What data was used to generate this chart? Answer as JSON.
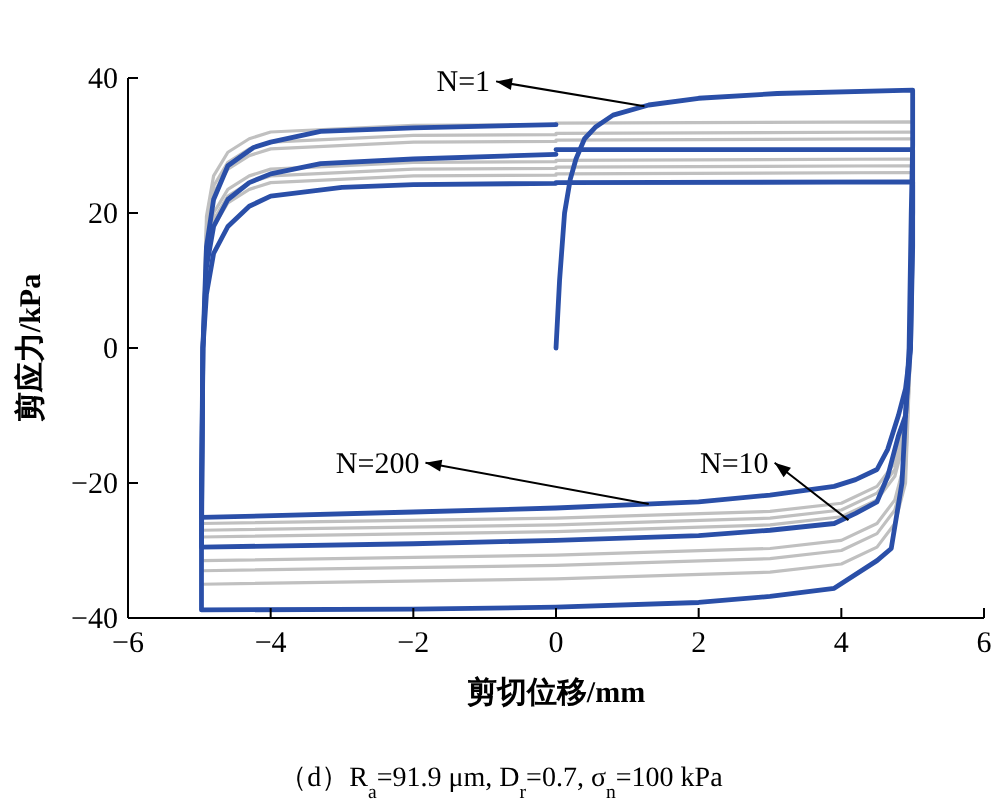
{
  "chart_data": {
    "type": "line",
    "xlabel": "剪切位移/mm",
    "ylabel": "剪应力/kPa",
    "xlim": [
      -6,
      6
    ],
    "ylim": [
      -40,
      40
    ],
    "xticks": [
      -6,
      -4,
      -2,
      0,
      2,
      4,
      6
    ],
    "yticks": [
      -40,
      -20,
      0,
      20,
      40
    ],
    "grid": false,
    "series": [
      {
        "color": "#c0c0c0",
        "x": [
          0,
          5,
          5,
          4.97,
          4.9,
          4.75,
          4.5,
          4,
          3,
          0,
          -4.97,
          -4.95,
          -4.9,
          -4.8,
          -4.6,
          -4.3,
          -4,
          -2,
          0
        ],
        "values": [
          33.3,
          33.5,
          23.5,
          0,
          -20,
          -26,
          -29.5,
          -32,
          -33.2,
          -34.2,
          -35,
          0,
          19.5,
          25.5,
          29,
          31,
          32,
          33,
          33.1
        ]
      },
      {
        "color": "#c0c0c0",
        "x": [
          0,
          5,
          5,
          4.97,
          4.9,
          4.75,
          4.5,
          4,
          3,
          0,
          -4.97,
          -4.95,
          -4.9,
          -4.8,
          -4.6,
          -4.3,
          -4,
          -2,
          0
        ],
        "values": [
          31.8,
          32,
          22,
          0,
          -18,
          -24,
          -27.5,
          -30,
          -31.2,
          -32.2,
          -33,
          0,
          18,
          24,
          27.5,
          29.5,
          30.5,
          31.5,
          31.6
        ]
      },
      {
        "color": "#c0c0c0",
        "x": [
          0,
          5,
          5,
          4.97,
          4.9,
          4.75,
          4.5,
          4,
          3,
          0,
          -4.97,
          -4.95,
          -4.9,
          -4.8,
          -4.6,
          -4.3,
          -4,
          -2,
          0
        ],
        "values": [
          30.8,
          31,
          21,
          0,
          -16.5,
          -22.5,
          -26,
          -28.5,
          -29.7,
          -30.7,
          -31.5,
          0,
          17,
          23,
          26.5,
          28.5,
          29.5,
          30.5,
          30.6
        ]
      },
      {
        "color": "#c0c0c0",
        "x": [
          0,
          5,
          5,
          4.97,
          4.9,
          4.75,
          4.5,
          4,
          3,
          0,
          -4.97,
          -4.95,
          -4.9,
          -4.8,
          -4.6,
          -4.3,
          -4,
          -2,
          0
        ],
        "values": [
          27.8,
          28,
          18,
          0,
          -13,
          -19,
          -22.5,
          -25,
          -26.2,
          -27.2,
          -28,
          0,
          14,
          20,
          23.5,
          25.5,
          26.5,
          27.5,
          27.6
        ]
      },
      {
        "color": "#c0c0c0",
        "x": [
          0,
          5,
          5,
          4.97,
          4.9,
          4.75,
          4.5,
          4,
          3,
          0,
          -4.97,
          -4.95,
          -4.9,
          -4.8,
          -4.6,
          -4.3,
          -4,
          -2,
          0
        ],
        "values": [
          26.8,
          27,
          17,
          0,
          -12,
          -18,
          -21.5,
          -24,
          -25.2,
          -26.2,
          -27,
          0,
          13,
          19,
          22.5,
          24.5,
          25.5,
          26.5,
          26.6
        ]
      },
      {
        "color": "#c0c0c0",
        "x": [
          0,
          5,
          5,
          4.97,
          4.9,
          4.75,
          4.5,
          4,
          3,
          0,
          -4.97,
          -4.95,
          -4.9,
          -4.8,
          -4.6,
          -4.3,
          -4,
          -2,
          0
        ],
        "values": [
          25.8,
          26,
          16,
          0,
          -11,
          -17,
          -20.5,
          -23,
          -24.2,
          -25.2,
          -26,
          0,
          12,
          18,
          21.5,
          23.5,
          24.5,
          25.5,
          25.6
        ]
      },
      {
        "color": "#2a4fa8",
        "x": [
          0,
          0.05,
          0.12,
          0.2,
          0.28,
          0.4,
          0.55,
          0.8,
          1.3,
          2,
          3.1,
          5,
          5,
          4.98,
          4.95,
          4.9,
          4.85,
          4.7,
          4.5,
          3.9,
          3,
          2,
          0,
          -2,
          -4.97,
          -4.97,
          -4.95,
          -4.9,
          -4.8,
          -4.6,
          -4.24,
          -4,
          -3.3,
          -2,
          0
        ],
        "values": [
          0,
          10,
          20,
          25,
          28,
          31,
          32.7,
          34.5,
          36,
          37,
          37.7,
          38.2,
          30,
          20,
          0,
          -10,
          -20,
          -29.7,
          -31.5,
          -35.6,
          -36.8,
          -37.7,
          -38.4,
          -38.7,
          -38.8,
          -20,
          0,
          15,
          22,
          27,
          29.7,
          30.5,
          32.1,
          32.6,
          33.1
        ]
      },
      {
        "color": "#2a4fa8",
        "x": [
          0,
          5,
          5,
          4.97,
          4.9,
          4.8,
          4.65,
          4.5,
          4.2,
          3.9,
          3,
          2,
          0,
          -2,
          -4.97,
          -4.95,
          -4.9,
          -4.8,
          -4.6,
          -4.3,
          -4,
          -3.3,
          -2,
          0
        ],
        "values": [
          29.4,
          29.4,
          20,
          0,
          -10,
          -13,
          -19,
          -22.8,
          -24.5,
          -26,
          -27,
          -27.8,
          -28.5,
          -29,
          -29.5,
          0,
          12,
          18,
          22,
          24.5,
          25.8,
          27.3,
          28,
          28.7
        ]
      },
      {
        "color": "#2a4fa8",
        "x": [
          0,
          5,
          5,
          4.97,
          4.9,
          4.8,
          4.65,
          4.5,
          4.2,
          3.9,
          3,
          2,
          0,
          -2,
          -4.97,
          -4.95,
          -4.9,
          -4.8,
          -4.6,
          -4.3,
          -4,
          -3,
          -2,
          0
        ],
        "values": [
          24.5,
          24.6,
          15,
          0,
          -6,
          -10,
          -15,
          -18,
          -19.5,
          -20.5,
          -21.8,
          -22.8,
          -23.7,
          -24.3,
          -25.1,
          0,
          8,
          14,
          18,
          21,
          22.5,
          23.8,
          24.2,
          24.4
        ]
      }
    ],
    "annotations": [
      {
        "text": "N=1",
        "x": 1.24,
        "y": 35.8
      },
      {
        "text": "N=200",
        "x": 1.3,
        "y": -23.1
      },
      {
        "text": "N=10",
        "x": 4.1,
        "y": -25.5
      },
      "（d）R$_{a}$=91.9 μm, D$_{r}$=0.7, σ$_{n}$=100 kPa"
    ]
  }
}
